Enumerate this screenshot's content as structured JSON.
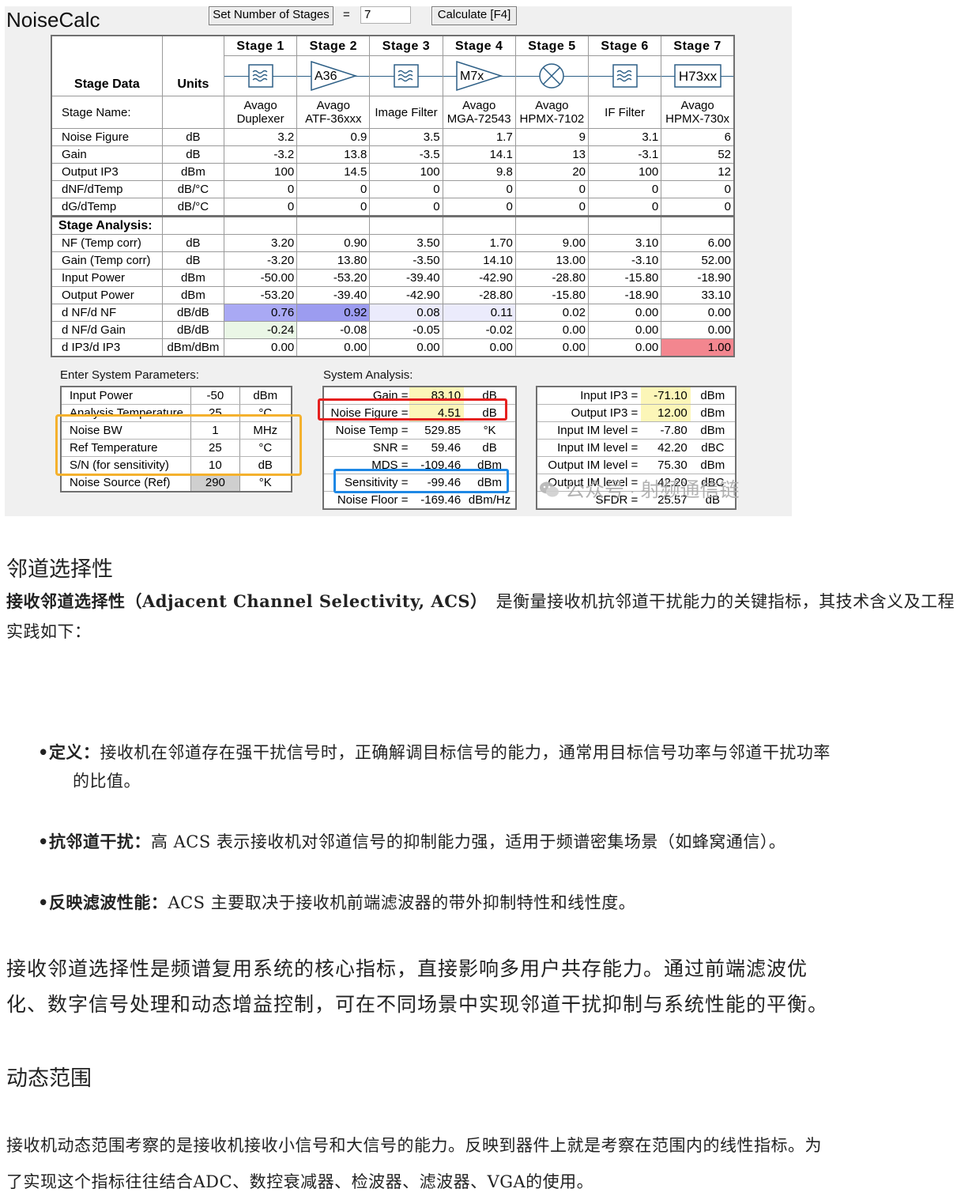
{
  "app": {
    "title": "NoiseCalc",
    "set_stages_label": "Set Number of Stages",
    "equals": "=",
    "stages_value": "7",
    "calculate_label": "Calculate [F4]"
  },
  "table": {
    "stage_data_label": "Stage Data",
    "units_label": "Units",
    "stage_headers": [
      "Stage 1",
      "Stage 2",
      "Stage 3",
      "Stage 4",
      "Stage 5",
      "Stage 6",
      "Stage 7"
    ],
    "symbols": [
      {
        "type": "filter-icon",
        "text": ""
      },
      {
        "type": "amplifier-icon",
        "text": "A36"
      },
      {
        "type": "filter-icon",
        "text": ""
      },
      {
        "type": "amplifier-icon",
        "text": "M7x"
      },
      {
        "type": "mixer-icon",
        "text": ""
      },
      {
        "type": "filter-icon",
        "text": ""
      },
      {
        "type": "module-icon",
        "text": "H73xx"
      }
    ],
    "stage_name_label": "Stage Name:",
    "stage_names": [
      [
        "Avago",
        "Duplexer"
      ],
      [
        "Avago",
        "ATF-36xxx"
      ],
      [
        "Image Filter",
        ""
      ],
      [
        "Avago",
        "MGA-72543"
      ],
      [
        "Avago",
        "HPMX-7102"
      ],
      [
        "IF Filter",
        ""
      ],
      [
        "Avago",
        "HPMX-730x"
      ]
    ],
    "data_rows": [
      {
        "label": "Noise Figure",
        "unit": "dB",
        "values": [
          "3.2",
          "0.9",
          "3.5",
          "1.7",
          "9",
          "3.1",
          "6"
        ]
      },
      {
        "label": "Gain",
        "unit": "dB",
        "values": [
          "-3.2",
          "13.8",
          "-3.5",
          "14.1",
          "13",
          "-3.1",
          "52"
        ]
      },
      {
        "label": "Output IP3",
        "unit": "dBm",
        "values": [
          "100",
          "14.5",
          "100",
          "9.8",
          "20",
          "100",
          "12"
        ]
      },
      {
        "label": "dNF/dTemp",
        "unit": "dB/°C",
        "values": [
          "0",
          "0",
          "0",
          "0",
          "0",
          "0",
          "0"
        ]
      },
      {
        "label": "dG/dTemp",
        "unit": "dB/°C",
        "values": [
          "0",
          "0",
          "0",
          "0",
          "0",
          "0",
          "0"
        ]
      }
    ],
    "analysis_label": "Stage Analysis:",
    "analysis_rows": [
      {
        "label": "NF (Temp corr)",
        "unit": "dB",
        "values": [
          "3.20",
          "0.90",
          "3.50",
          "1.70",
          "9.00",
          "3.10",
          "6.00"
        ]
      },
      {
        "label": "Gain (Temp corr)",
        "unit": "dB",
        "values": [
          "-3.20",
          "13.80",
          "-3.50",
          "14.10",
          "13.00",
          "-3.10",
          "52.00"
        ]
      },
      {
        "label": "Input Power",
        "unit": "dBm",
        "values": [
          "-50.00",
          "-53.20",
          "-39.40",
          "-42.90",
          "-28.80",
          "-15.80",
          "-18.90"
        ]
      },
      {
        "label": "Output Power",
        "unit": "dBm",
        "values": [
          "-53.20",
          "-39.40",
          "-42.90",
          "-28.80",
          "-15.80",
          "-18.90",
          "33.10"
        ]
      },
      {
        "label": "d NF/d NF",
        "unit": "dB/dB",
        "values": [
          "0.76",
          "0.92",
          "0.08",
          "0.11",
          "0.02",
          "0.00",
          "0.00"
        ]
      },
      {
        "label": "d NF/d Gain",
        "unit": "dB/dB",
        "values": [
          "-0.24",
          "-0.08",
          "-0.05",
          "-0.02",
          "0.00",
          "0.00",
          "0.00"
        ]
      },
      {
        "label": "d IP3/d IP3",
        "unit": "dBm/dBm",
        "values": [
          "0.00",
          "0.00",
          "0.00",
          "0.00",
          "0.00",
          "0.00",
          "1.00"
        ]
      }
    ]
  },
  "sys_params": {
    "title": "Enter System Parameters:",
    "rows": [
      {
        "label": "Input Power",
        "value": "-50",
        "unit": "dBm"
      },
      {
        "label": "Analysis Temperature",
        "value": "25",
        "unit": "°C"
      },
      {
        "label": "Noise BW",
        "value": "1",
        "unit": "MHz"
      },
      {
        "label": "Ref Temperature",
        "value": "25",
        "unit": "°C"
      },
      {
        "label": "S/N (for sensitivity)",
        "value": "10",
        "unit": "dB"
      },
      {
        "label": "Noise Source (Ref)",
        "value": "290",
        "unit": "°K"
      }
    ]
  },
  "sys_analysis": {
    "title": "System Analysis:",
    "rows": [
      {
        "label": "Gain =",
        "value": "83.10",
        "unit": "dB"
      },
      {
        "label": "Noise Figure =",
        "value": "4.51",
        "unit": "dB"
      },
      {
        "label": "Noise Temp =",
        "value": "529.85",
        "unit": "°K"
      },
      {
        "label": "SNR =",
        "value": "59.46",
        "unit": "dB"
      },
      {
        "label": "MDS =",
        "value": "-109.46",
        "unit": "dBm"
      },
      {
        "label": "Sensitivity =",
        "value": "-99.46",
        "unit": "dBm"
      },
      {
        "label": "Noise Floor =",
        "value": "-169.46",
        "unit": "dBm/Hz"
      }
    ]
  },
  "ip3_analysis": {
    "rows": [
      {
        "label": "Input IP3 =",
        "value": "-71.10",
        "unit": "dBm"
      },
      {
        "label": "Output IP3 =",
        "value": "12.00",
        "unit": "dBm"
      },
      {
        "label": "Input IM level =",
        "value": "-7.80",
        "unit": "dBm"
      },
      {
        "label": "Input IM level =",
        "value": "42.20",
        "unit": "dBC"
      },
      {
        "label": "Output IM level =",
        "value": "75.30",
        "unit": "dBm"
      },
      {
        "label": "Output IM level =",
        "value": "42.20",
        "unit": "dBC"
      },
      {
        "label": "SFDR =",
        "value": "25.57",
        "unit": "dB"
      }
    ]
  },
  "watermark": {
    "icon": "wechat-icon",
    "part1": "公众号",
    "dot": "·",
    "part2": "射频通信链"
  },
  "article": {
    "h_acs": "邻道选择性",
    "acs_intro_bold": "接收邻道选择性（Adjacent Channel Selectivity, ACS）",
    "acs_intro_rest": "　是衡量接收机抗邻道干扰能力的关键指标，其技术含义及工程实践如下：",
    "bullets": [
      {
        "bold": "定义：",
        "text": "接收机在邻道存在强干扰信号时，正确解调目标信号的能力，通常用目标信号功率与邻道干扰功率",
        "cont": "的比值。"
      },
      {
        "bold": "抗邻道干扰：",
        "text": "高 ACS 表示接收机对邻道信号的抑制能力强，适用于频谱密集场景（如蜂窝通信）。",
        "cont": ""
      },
      {
        "bold": "反映滤波性能：",
        "text": "ACS 主要取决于接收机前端滤波器的带外抑制特性和线性度。",
        "cont": ""
      }
    ],
    "summary_line1": "接收邻道选择性是频谱复用系统的核心指标，直接影响多用户共存能力。通过前端滤波优",
    "summary_line2": "化、数字信号处理和动态增益控制，可在不同场景中实现邻道干扰抑制与系统性能的平衡。",
    "h_dr": "动态范围",
    "dr_line1": "接收机动态范围考察的是接收机接收小信号和大信号的能力。反映到器件上就是考察在范围内的线性指标。为",
    "dr_line2": "了实现这个指标往往结合ADC、数控衰减器、检波器、滤波器、VGA的使用。"
  }
}
